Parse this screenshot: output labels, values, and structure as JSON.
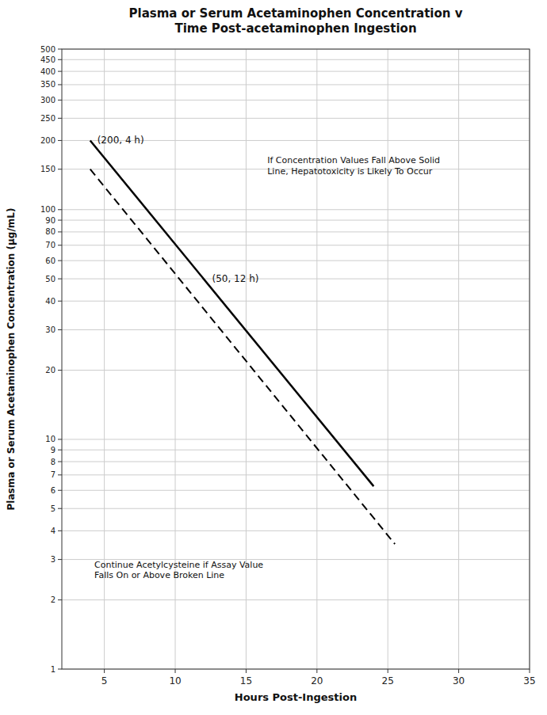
{
  "chart_data": {
    "type": "line",
    "title": "Plasma or Serum Acetaminophen Concentration v\nTime Post-acetaminophen Ingestion",
    "x_label": "Hours Post-Ingestion",
    "y_label": "Plasma or Serum Acetaminophen Concentration (μg/mL)",
    "log": "y",
    "grid": true,
    "xlim": [
      2,
      35
    ],
    "ylim": [
      1,
      500
    ],
    "xticks": [
      5,
      10,
      15,
      20,
      25,
      30,
      35
    ],
    "yticks": [
      1,
      2,
      3,
      4,
      5,
      6,
      7,
      8,
      9,
      10,
      20,
      30,
      40,
      50,
      60,
      70,
      80,
      90,
      100,
      150,
      200,
      250,
      300,
      350,
      400,
      450,
      500
    ],
    "series": [
      {
        "x": [
          4,
          24
        ],
        "values": [
          200,
          6.25
        ],
        "color": "black",
        "line_style": "solid"
      },
      {
        "x": [
          4,
          25.5
        ],
        "values": [
          150,
          3.5
        ],
        "color": "black",
        "line_style": "dashed"
      }
    ],
    "annotations": [
      {
        "text": "(200, 4 h)",
        "x": 4.5,
        "y": 200
      },
      {
        "text": "(50, 12 h)",
        "x": 12.6,
        "y": 50
      },
      {
        "text": "If Concentration Values Fall Above Solid\nLine, Hepatotoxicity is Likely To Occur",
        "x": 16.5,
        "y": 155
      },
      {
        "text": "Continue Acetylcysteine if Assay Value\nFalls On or Above Broken Line",
        "x": 4.3,
        "y": 2.7
      }
    ]
  }
}
